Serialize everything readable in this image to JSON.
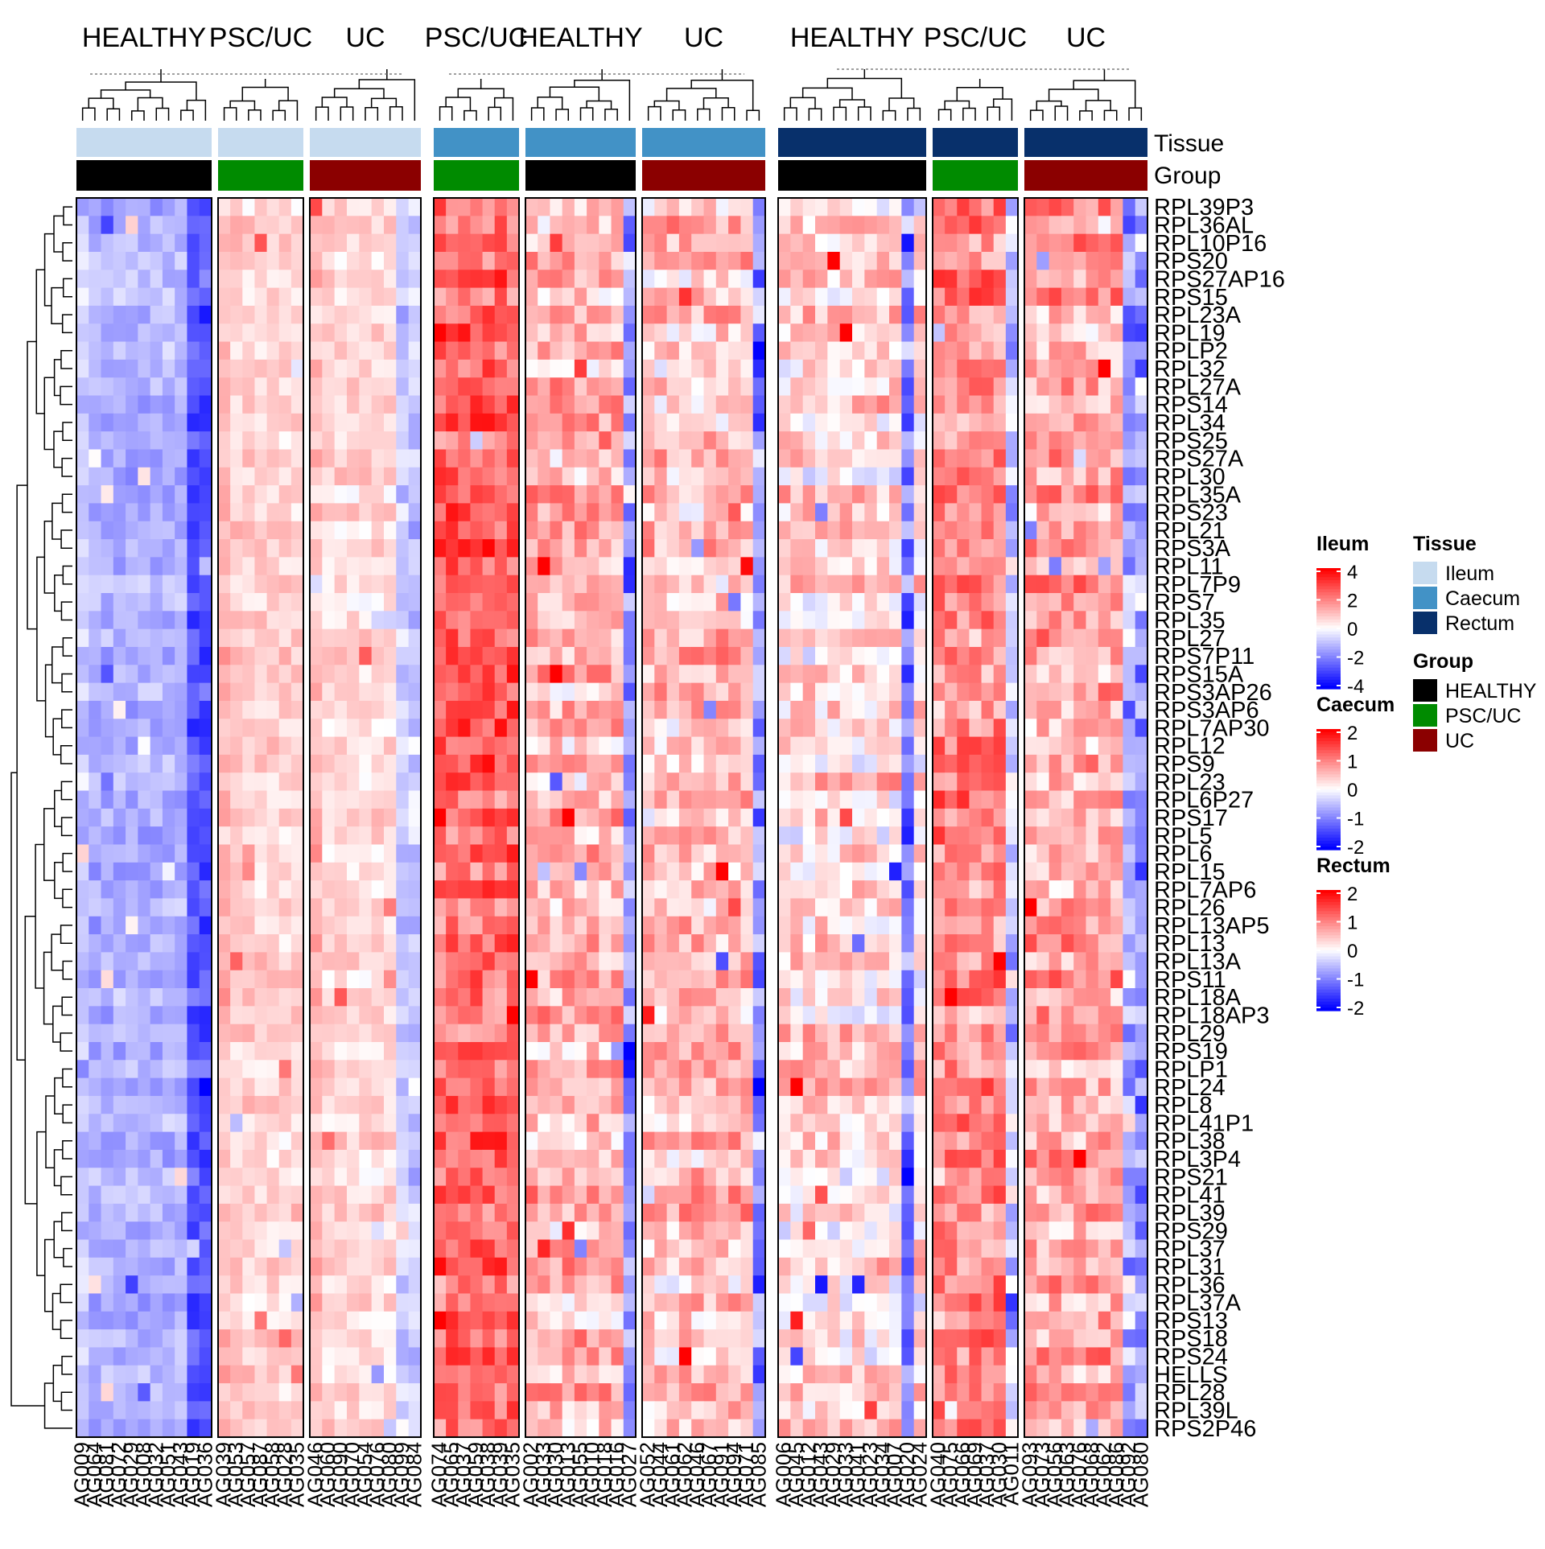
{
  "chart_data": {
    "type": "heatmap",
    "column_group_titles": [
      "HEALTHY",
      "PSC/UC",
      "UC",
      "PSC/UC",
      "HEALTHY",
      "UC",
      "HEALTHY",
      "PSC/UC",
      "UC"
    ],
    "annotation_row_labels": {
      "tissue": "Tissue",
      "group": "Group"
    },
    "rows": [
      "RPL39P3",
      "RPL36AL",
      "RPL10P16",
      "RPS20",
      "RPS27AP16",
      "RPS15",
      "RPL23A",
      "RPL19",
      "RPLP2",
      "RPL32",
      "RPL27A",
      "RPS14",
      "RPL34",
      "RPS25",
      "RPS27A",
      "RPL30",
      "RPL35A",
      "RPS23",
      "RPL21",
      "RPS3A",
      "RPL11",
      "RPL7P9",
      "RPS7",
      "RPL35",
      "RPL27",
      "RPS7P11",
      "RPS15A",
      "RPS3AP26",
      "RPS3AP6",
      "RPL7AP30",
      "RPL12",
      "RPS9",
      "RPL23",
      "RPL6P27",
      "RPS17",
      "RPL5",
      "RPL6",
      "RPL15",
      "RPL7AP6",
      "RPL26",
      "RPL13AP5",
      "RPL13",
      "RPL13A",
      "RPS11",
      "RPL18A",
      "RPL18AP3",
      "RPL29",
      "RPS19",
      "RPLP1",
      "RPL24",
      "RPL8",
      "RPL41P1",
      "RPL38",
      "RPL3P4",
      "RPS21",
      "RPL41",
      "RPL39",
      "RPS29",
      "RPL37",
      "RPL31",
      "RPL36",
      "RPL37A",
      "RPS13",
      "RPS18",
      "RPS24",
      "HELLS",
      "RPL28",
      "RPL39L",
      "RPS2P46"
    ],
    "blocks": [
      {
        "tissue": "Ileum",
        "group": "HEALTHY",
        "columns": [
          "AG009",
          "AG064",
          "AG081",
          "AG072",
          "AG029",
          "AG008",
          "AG032",
          "AG051",
          "AG043",
          "AG019",
          "AG036"
        ]
      },
      {
        "tissue": "Ileum",
        "group": "PSC/UC",
        "columns": [
          "AG039",
          "AG053",
          "AG057",
          "AG087",
          "AG058",
          "AG028",
          "AG035"
        ]
      },
      {
        "tissue": "Ileum",
        "group": "UC",
        "columns": [
          "AG046",
          "AG060",
          "AG090",
          "AG070",
          "AG054",
          "AG076",
          "AG080",
          "AG099",
          "AG084"
        ]
      },
      {
        "tissue": "Caecum",
        "group": "PSC/UC",
        "columns": [
          "AG074",
          "AG065",
          "AG037",
          "AG059",
          "AG038",
          "AG039",
          "AG035"
        ]
      },
      {
        "tissue": "Caecum",
        "group": "HEALTHY",
        "columns": [
          "AG002",
          "AG033",
          "AG030",
          "AG013",
          "AG055",
          "AG010",
          "AG018",
          "AG016",
          "AG027"
        ]
      },
      {
        "tissue": "Caecum",
        "group": "UC",
        "columns": [
          "AG052",
          "AG044",
          "AG061",
          "AG062",
          "AG046",
          "AG067",
          "AG091",
          "AG094",
          "AG071",
          "AG085"
        ]
      },
      {
        "tissue": "Rectum",
        "group": "HEALTHY",
        "columns": [
          "AG006",
          "AG045",
          "AG012",
          "AG043",
          "AG029",
          "AG033",
          "AG041",
          "AG023",
          "AG034",
          "AG007",
          "AG020",
          "AG024"
        ]
      },
      {
        "tissue": "Rectum",
        "group": "PSC/UC",
        "columns": [
          "AG040",
          "AG075",
          "AG066",
          "AG069",
          "AG037",
          "AG030",
          "AG011"
        ]
      },
      {
        "tissue": "Rectum",
        "group": "UC",
        "columns": [
          "AG093",
          "AG073",
          "AG056",
          "AG063",
          "AG076",
          "AG068",
          "AG062",
          "AG086",
          "AG092",
          "AG080"
        ]
      }
    ],
    "block_base_values": [
      -1.2,
      0.7,
      0.6,
      1.2,
      0.6,
      0.5,
      0.3,
      0.9,
      0.7
    ],
    "low_columns": [
      [
        9,
        10
      ],
      [],
      [
        7,
        8
      ],
      [],
      [
        8
      ],
      [
        9
      ],
      [
        10
      ],
      [
        6
      ],
      [
        8,
        9
      ]
    ],
    "seed": 12345,
    "legends": {
      "ileum": {
        "title": "Ileum",
        "ticks": [
          "4",
          "2",
          "0",
          "-2",
          "-4"
        ],
        "range": [
          -4,
          4
        ]
      },
      "caecum": {
        "title": "Caecum",
        "ticks": [
          "2",
          "1",
          "0",
          "-1",
          "-2"
        ],
        "range": [
          -2,
          2
        ]
      },
      "rectum": {
        "title": "Rectum",
        "ticks": [
          "2",
          "1",
          "0",
          "-1",
          "-2"
        ],
        "range": [
          -2,
          2
        ]
      }
    },
    "tissue_legend": {
      "title": "Tissue",
      "items": [
        {
          "label": "Ileum",
          "color": "#C6DBEF"
        },
        {
          "label": "Caecum",
          "color": "#4292C6"
        },
        {
          "label": "Rectum",
          "color": "#08306B"
        }
      ]
    },
    "group_legend": {
      "title": "Group",
      "items": [
        {
          "label": "HEALTHY",
          "color": "#000000"
        },
        {
          "label": "PSC/UC",
          "color": "#008B00"
        },
        {
          "label": "UC",
          "color": "#8B0000"
        }
      ]
    },
    "colors": {
      "high": "#FF0000",
      "mid": "#FFFFFF",
      "low": "#0000FF"
    },
    "grid": false
  }
}
